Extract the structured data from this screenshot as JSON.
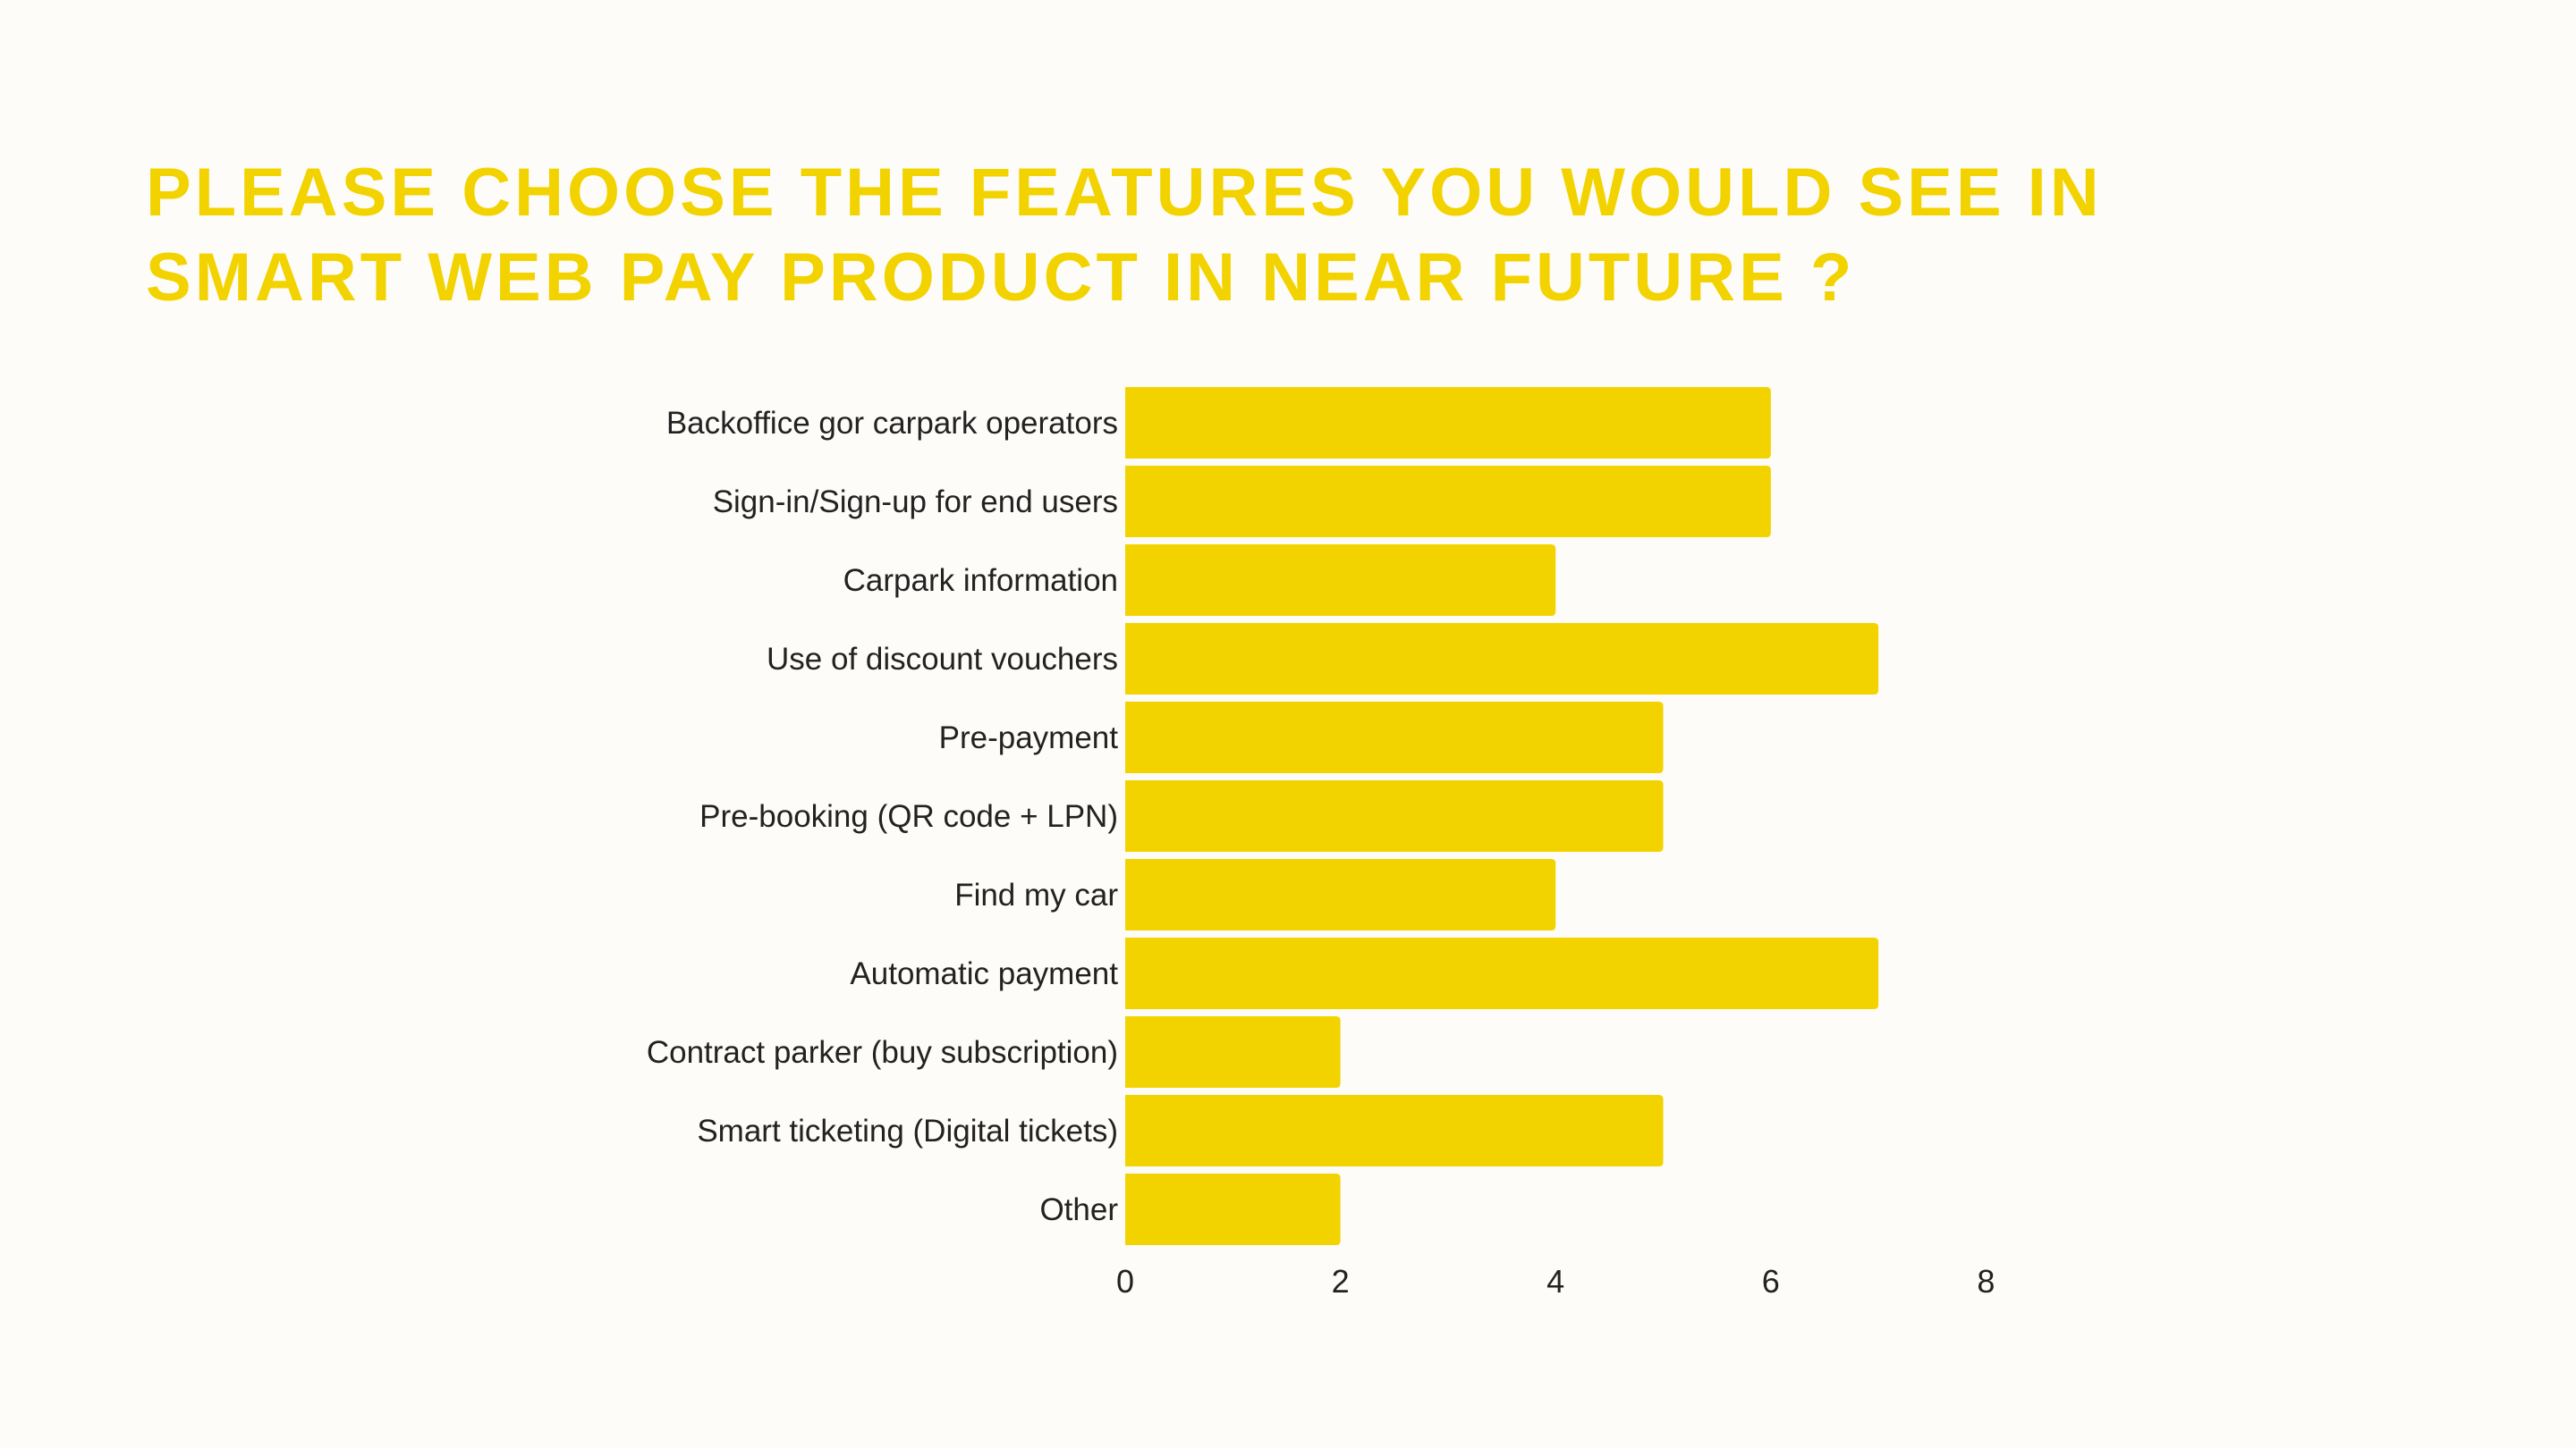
{
  "chart_data": {
    "type": "bar",
    "orientation": "horizontal",
    "title": [
      "PLEASE CHOOSE THE FEATURES YOU WOULD SEE IN",
      "SMART WEB PAY PRODUCT IN NEAR FUTURE ?"
    ],
    "categories": [
      "Backoffice gor carpark operators",
      "Sign-in/Sign-up for end users",
      "Carpark information",
      "Use of discount vouchers",
      "Pre-payment",
      "Pre-booking (QR code + LPN)",
      "Find my car",
      "Automatic payment",
      "Contract parker (buy subscription)",
      "Smart ticketing (Digital tickets)",
      "Other"
    ],
    "values": [
      6,
      6,
      4,
      7,
      5,
      5,
      4,
      7,
      2,
      5,
      2
    ],
    "xlabel": "",
    "ylabel": "",
    "xlim": [
      0,
      8
    ],
    "xticks": [
      "0",
      "2",
      "4",
      "6",
      "8"
    ],
    "grid": false,
    "legend": "none",
    "colors": {
      "bar": "#f2d300",
      "title": "#f2d300",
      "text": "#222222",
      "background": "#fdfcf8"
    }
  }
}
